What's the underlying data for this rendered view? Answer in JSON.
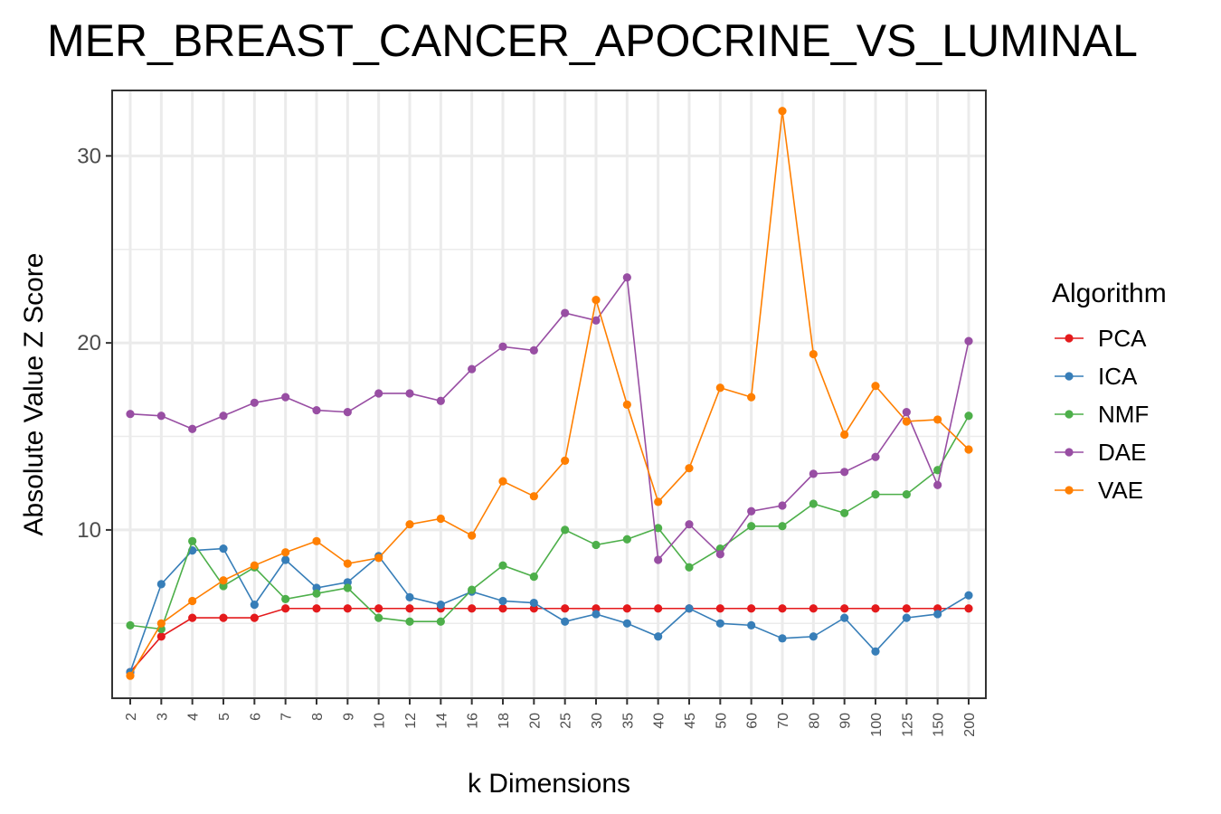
{
  "chart_data": {
    "type": "line",
    "title": "MER_BREAST_CANCER_APOCRINE_VS_LUMINAL",
    "xlabel": "k Dimensions",
    "ylabel": "Absolute Value Z Score",
    "x": [
      "2",
      "3",
      "4",
      "5",
      "6",
      "7",
      "8",
      "9",
      "10",
      "12",
      "14",
      "16",
      "18",
      "20",
      "25",
      "30",
      "35",
      "40",
      "45",
      "50",
      "60",
      "70",
      "80",
      "90",
      "100",
      "125",
      "150",
      "200"
    ],
    "ylim": [
      1,
      33.5
    ],
    "yticks": [
      10,
      20,
      30
    ],
    "grid": true,
    "legend": {
      "title": "Algorithm",
      "position": "right"
    },
    "series": [
      {
        "name": "PCA",
        "color": "#e41a1c",
        "values": [
          2.4,
          4.3,
          5.3,
          5.3,
          5.3,
          5.8,
          5.8,
          5.8,
          5.8,
          5.8,
          5.8,
          5.8,
          5.8,
          5.8,
          5.8,
          5.8,
          5.8,
          5.8,
          5.8,
          5.8,
          5.8,
          5.8,
          5.8,
          5.8,
          5.8,
          5.8,
          5.8,
          5.8
        ]
      },
      {
        "name": "ICA",
        "color": "#377eb8",
        "values": [
          2.4,
          7.1,
          8.9,
          9.0,
          6.0,
          8.4,
          6.9,
          7.2,
          8.6,
          6.4,
          6.0,
          6.7,
          6.2,
          6.1,
          5.1,
          5.5,
          5.0,
          4.3,
          5.8,
          5.0,
          4.9,
          4.2,
          4.3,
          5.3,
          3.5,
          5.3,
          5.5,
          6.5
        ]
      },
      {
        "name": "NMF",
        "color": "#4daf4a",
        "values": [
          4.9,
          4.7,
          9.4,
          7.0,
          8.0,
          6.3,
          6.6,
          6.9,
          5.3,
          5.1,
          5.1,
          6.8,
          8.1,
          7.5,
          10.0,
          9.2,
          9.5,
          10.1,
          8.0,
          9.0,
          10.2,
          10.2,
          11.4,
          10.9,
          11.9,
          11.9,
          13.2,
          16.1
        ]
      },
      {
        "name": "DAE",
        "color": "#984ea3",
        "values": [
          16.2,
          16.1,
          15.4,
          16.1,
          16.8,
          17.1,
          16.4,
          16.3,
          17.3,
          17.3,
          16.9,
          18.6,
          19.8,
          19.6,
          21.6,
          21.2,
          23.5,
          8.4,
          10.3,
          8.7,
          11.0,
          11.3,
          13.0,
          13.1,
          13.9,
          16.3,
          12.4,
          20.1
        ]
      },
      {
        "name": "VAE",
        "color": "#ff7f00",
        "values": [
          2.2,
          5.0,
          6.2,
          7.3,
          8.1,
          8.8,
          9.4,
          8.2,
          8.5,
          10.3,
          10.6,
          9.7,
          12.6,
          11.8,
          13.7,
          22.3,
          16.7,
          11.5,
          13.3,
          17.6,
          17.1,
          32.4,
          19.4,
          15.1,
          17.7,
          15.8,
          15.9,
          14.3
        ]
      }
    ]
  }
}
